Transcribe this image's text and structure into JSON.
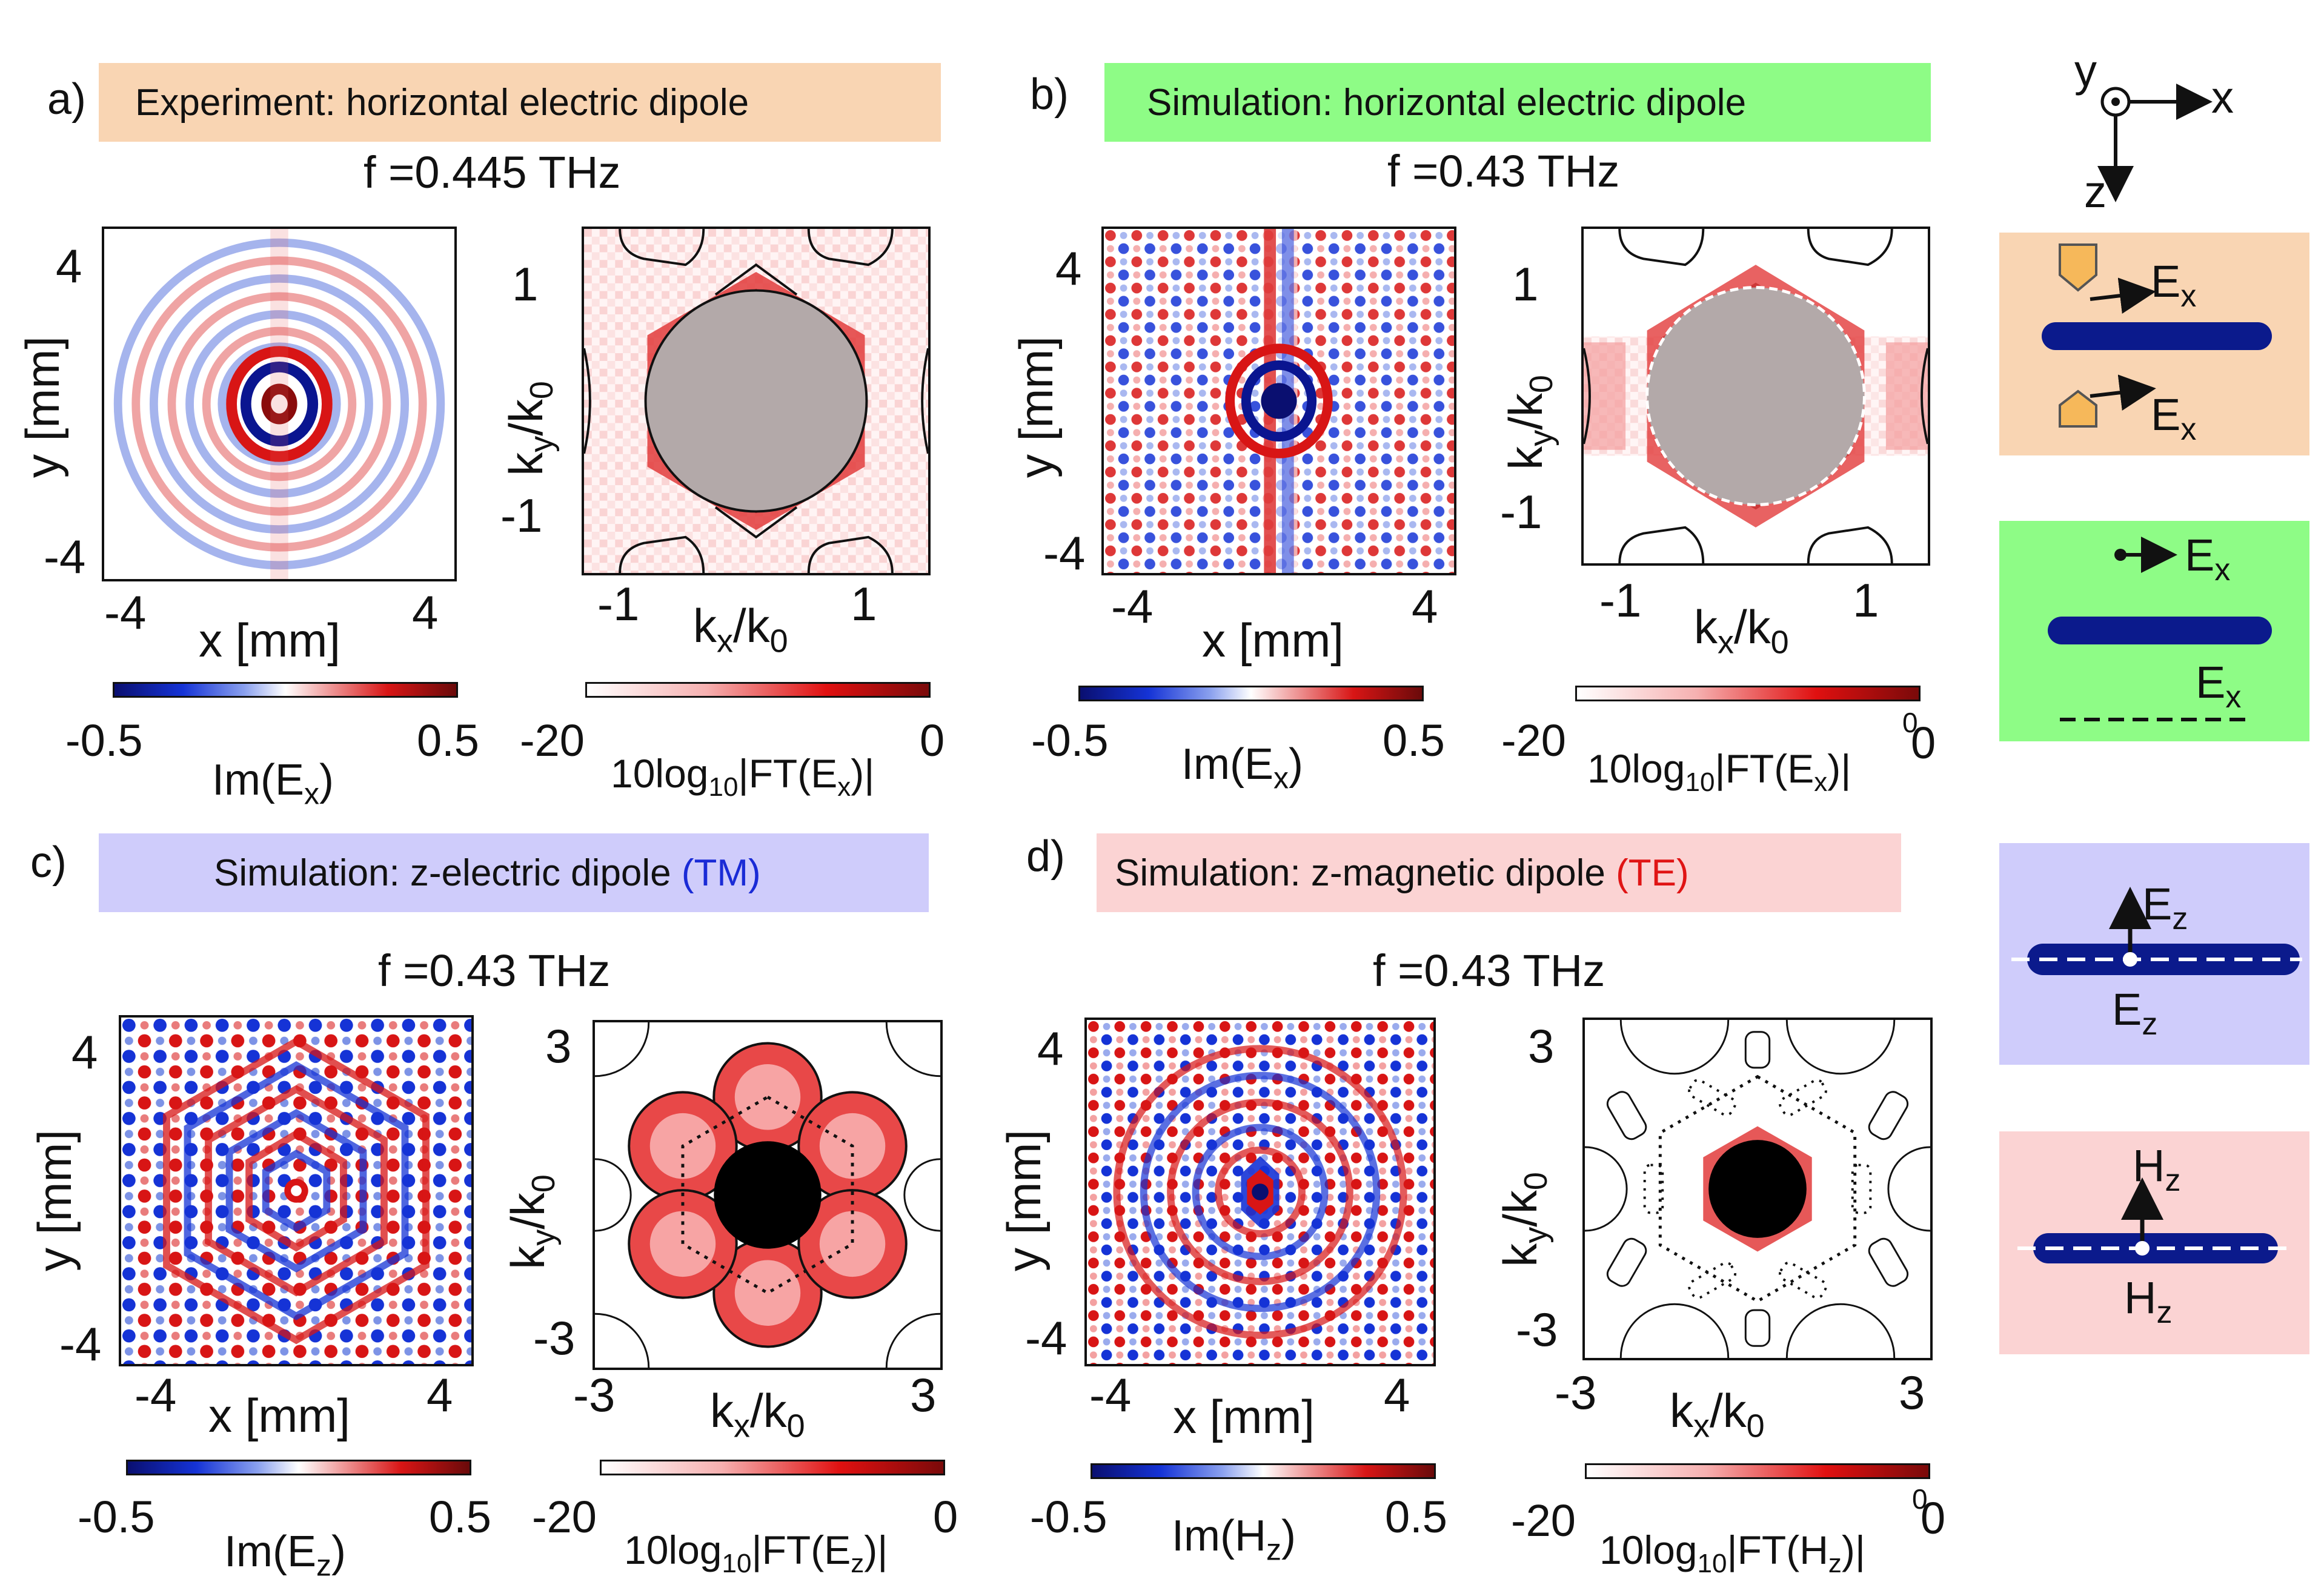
{
  "panels": {
    "a": {
      "letter": "a)",
      "banner": "Experiment: horizontal electric dipole",
      "banner_color": "#f9d5b3",
      "freq": "f =0.445 THz",
      "real": {
        "xlabel": "x [mm]",
        "ylabel": "y [mm]",
        "xticks": [
          "-4",
          "4"
        ],
        "yticks": [
          "4",
          "-4"
        ],
        "cb_min": "-0.5",
        "cb_max": "0.5",
        "cb_label": "Im(E",
        "cb_sub": "x",
        "cb_close": ")"
      },
      "k": {
        "xlabel": "k",
        "xsub": "x",
        "xden": "/k",
        "xden_sub": "0",
        "ylabel": "k",
        "ysub": "y",
        "yden": "/k",
        "yden_sub": "0",
        "xticks": [
          "-1",
          "1"
        ],
        "yticks": [
          "1",
          "-1"
        ],
        "cb_min": "-20",
        "cb_max": "0",
        "cb_label_pre": "10log",
        "cb_label_sub": "10",
        "cb_label_post": "|FT(E",
        "cb_label_sub2": "x",
        "cb_label_end": ")|"
      }
    },
    "b": {
      "letter": "b)",
      "banner": "Simulation: horizontal electric dipole",
      "banner_color": "#8efc86",
      "freq": "f =0.43 THz",
      "real": {
        "xlabel": "x [mm]",
        "ylabel": "y [mm]",
        "xticks": [
          "-4",
          "4"
        ],
        "yticks": [
          "4",
          "-4"
        ],
        "cb_min": "-0.5",
        "cb_max": "0.5",
        "cb_label": "Im(E",
        "cb_sub": "x",
        "cb_close": ")"
      },
      "k": {
        "xlabel": "k",
        "xsub": "x",
        "xden": "/k",
        "xden_sub": "0",
        "ylabel": "k",
        "ysub": "y",
        "yden": "/k",
        "yden_sub": "0",
        "xticks": [
          "-1",
          "1"
        ],
        "yticks": [
          "1",
          "-1"
        ],
        "cb_min": "-20",
        "cb_max": "0",
        "cb_max_small": "0",
        "cb_label_pre": "10log",
        "cb_label_sub": "10",
        "cb_label_post": "|FT(E",
        "cb_label_sub2": "x",
        "cb_label_end": ")|"
      }
    },
    "c": {
      "letter": "c)",
      "banner_pre": "Simulation: z-electric dipole ",
      "banner_hl": "(TM)",
      "banner_color": "#cfccfb",
      "freq": "f =0.43 THz",
      "real": {
        "xlabel": "x [mm]",
        "ylabel": "y [mm]",
        "xticks": [
          "-4",
          "4"
        ],
        "yticks": [
          "4",
          "-4"
        ],
        "cb_min": "-0.5",
        "cb_max": "0.5",
        "cb_label": "Im(E",
        "cb_sub": "z",
        "cb_close": ")"
      },
      "k": {
        "xlabel": "k",
        "xsub": "x",
        "xden": "/k",
        "xden_sub": "0",
        "ylabel": "k",
        "ysub": "y",
        "yden": "/k",
        "yden_sub": "0",
        "xticks": [
          "-3",
          "3"
        ],
        "yticks": [
          "3",
          "-3"
        ],
        "cb_min": "-20",
        "cb_max": "0",
        "cb_label_pre": "10log",
        "cb_label_sub": "10",
        "cb_label_post": "|FT(E",
        "cb_label_sub2": "z",
        "cb_label_end": ")|"
      }
    },
    "d": {
      "letter": "d)",
      "banner_pre": "Simulation: z-magnetic dipole ",
      "banner_hl": "(TE)",
      "banner_color": "#fbd3d3",
      "freq": "f =0.43 THz",
      "real": {
        "xlabel": "x [mm]",
        "ylabel": "y [mm]",
        "xticks": [
          "-4",
          "4"
        ],
        "yticks": [
          "4",
          "-4"
        ],
        "cb_min": "-0.5",
        "cb_max": "0.5",
        "cb_label": "Im(H",
        "cb_sub": "z",
        "cb_close": ")"
      },
      "k": {
        "xlabel": "k",
        "xsub": "x",
        "xden": "/k",
        "xden_sub": "0",
        "ylabel": "k",
        "ysub": "y",
        "yden": "/k",
        "yden_sub": "0",
        "xticks": [
          "-3",
          "3"
        ],
        "yticks": [
          "3",
          "-3"
        ],
        "cb_min": "-20",
        "cb_max": "0",
        "cb_max_small": "0",
        "cb_label_pre": "10log",
        "cb_label_sub": "10",
        "cb_label_post": "|FT(H",
        "cb_label_sub2": "z",
        "cb_label_end": ")|"
      }
    }
  },
  "axes_key": {
    "y": "y",
    "x": "x",
    "z": "z"
  },
  "schematics": {
    "exp": {
      "top": "E",
      "top_sub": "x",
      "bottom": "E",
      "bottom_sub": "x",
      "color": "#f9d5b3"
    },
    "sim": {
      "top": "E",
      "top_sub": "x",
      "bottom": "E",
      "bottom_sub": "x",
      "color": "#8efc86"
    },
    "tm": {
      "top": "E",
      "top_sub": "z",
      "bottom": "E",
      "bottom_sub": "z",
      "color": "#cfccfb"
    },
    "te": {
      "top": "H",
      "top_sub": "z",
      "bottom": "H",
      "bottom_sub": "z",
      "color": "#fbd3d3"
    }
  },
  "colors": {
    "waveguide": "#0b1a8c",
    "red": "#d81515",
    "blue": "#1533d6"
  }
}
